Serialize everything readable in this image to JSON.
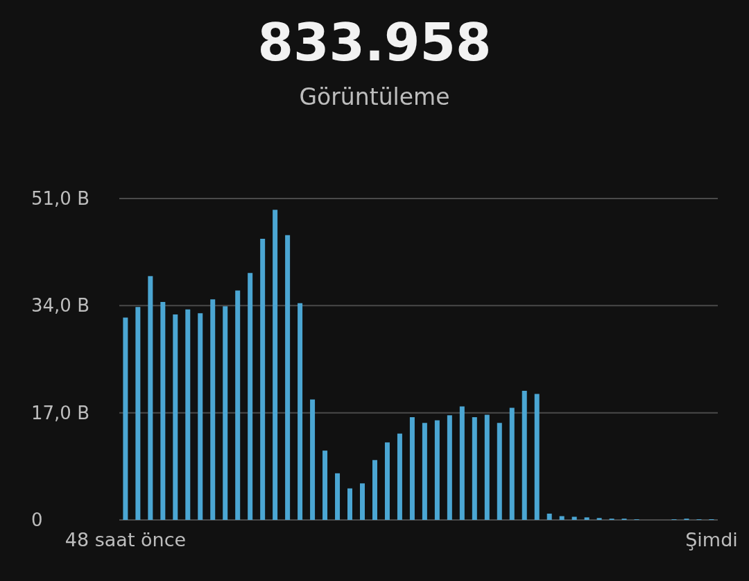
{
  "chart_data": {
    "type": "bar",
    "title": "833.958",
    "subtitle": "Görüntüleme",
    "categories": [
      "48 saat önce",
      null,
      null,
      null,
      null,
      null,
      null,
      null,
      null,
      null,
      null,
      null,
      null,
      null,
      null,
      null,
      null,
      null,
      null,
      null,
      null,
      null,
      null,
      null,
      null,
      null,
      null,
      null,
      null,
      null,
      null,
      null,
      null,
      null,
      null,
      null,
      null,
      null,
      null,
      null,
      null,
      null,
      null,
      null,
      null,
      null,
      null,
      "Şimdi"
    ],
    "values": [
      32.1,
      33.8,
      38.7,
      34.6,
      32.6,
      33.4,
      32.8,
      35.0,
      33.9,
      36.4,
      39.2,
      44.6,
      49.2,
      45.2,
      34.4,
      19.1,
      11.0,
      7.4,
      5.0,
      5.8,
      9.5,
      12.3,
      13.7,
      16.3,
      15.4,
      15.8,
      16.6,
      18.0,
      16.3,
      16.7,
      15.4,
      17.8,
      20.5,
      20.0,
      1.0,
      0.6,
      0.5,
      0.4,
      0.3,
      0.2,
      0.2,
      0.1,
      0,
      0,
      0.1,
      0.2,
      0.1,
      0.1
    ],
    "color": "#4ba6d3",
    "ylim": [
      0,
      51
    ],
    "yticks": [
      {
        "value": 0,
        "label": "0"
      },
      {
        "value": 17,
        "label": "17,0 B"
      },
      {
        "value": 34,
        "label": "34,0 B"
      },
      {
        "value": 51,
        "label": "51,0 B"
      }
    ],
    "grid": "y"
  }
}
